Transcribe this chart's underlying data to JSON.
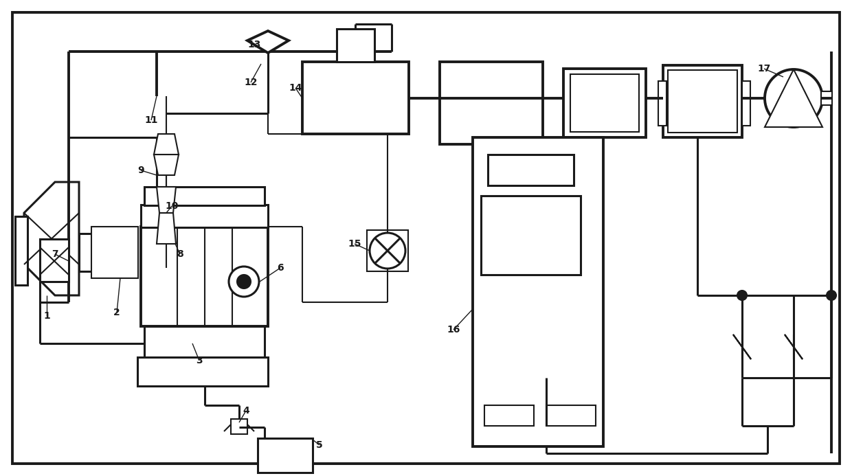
{
  "bg_color": "#ffffff",
  "lc": "#1a1a1a",
  "lw_thin": 1.5,
  "lw_med": 2.2,
  "lw_thick": 2.8,
  "fig_w": 12.4,
  "fig_h": 6.93
}
